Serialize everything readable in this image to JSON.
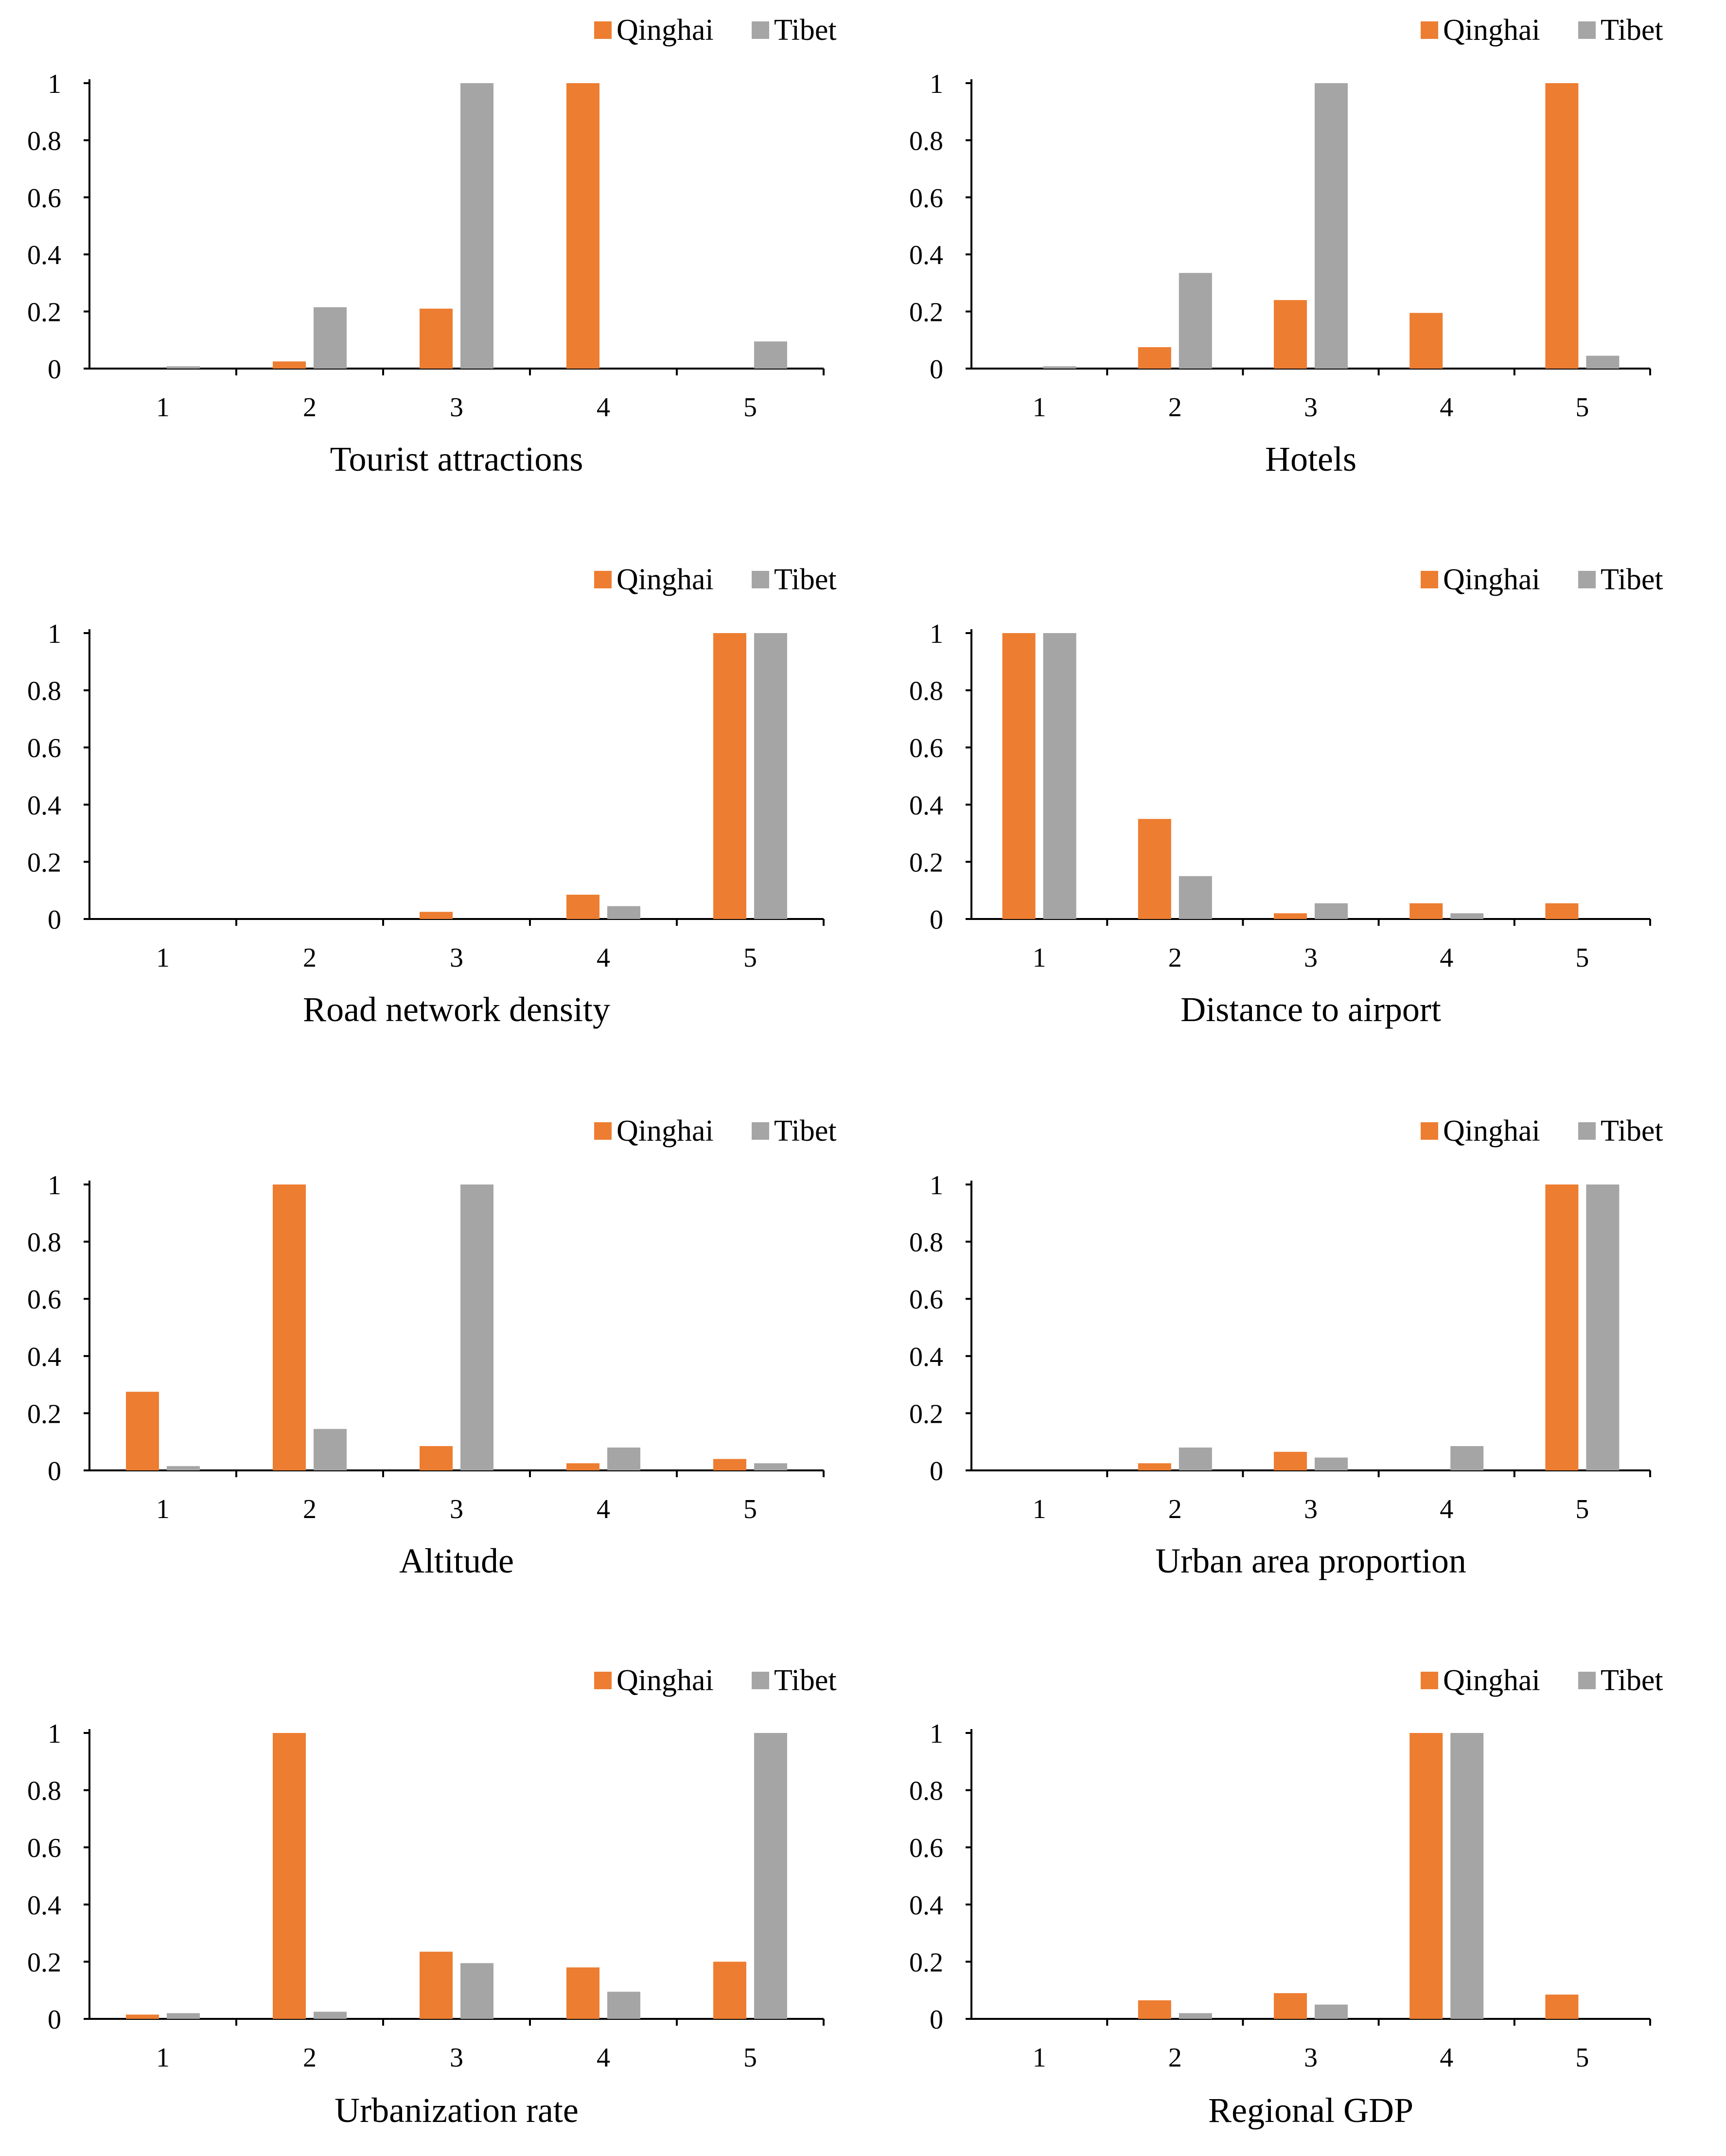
{
  "colors": {
    "Qinghai": "#ED7D31",
    "Tibet": "#A5A5A5",
    "axis": "#000000"
  },
  "legend_labels": [
    "Qinghai",
    "Tibet"
  ],
  "chart_data": [
    {
      "type": "bar",
      "title": "Tourist attractions",
      "categories": [
        "1",
        "2",
        "3",
        "4",
        "5"
      ],
      "y_ticks": [
        "0",
        "0.2",
        "0.4",
        "0.6",
        "0.8",
        "1"
      ],
      "ylim": [
        0,
        1
      ],
      "legend": "top-right",
      "series": [
        {
          "name": "Qinghai",
          "values": [
            0,
            0.025,
            0.21,
            1,
            0
          ]
        },
        {
          "name": "Tibet",
          "values": [
            0.008,
            0.215,
            1,
            0,
            0.095
          ]
        }
      ]
    },
    {
      "type": "bar",
      "title": "Hotels",
      "categories": [
        "1",
        "2",
        "3",
        "4",
        "5"
      ],
      "y_ticks": [
        "0",
        "0.2",
        "0.4",
        "0.6",
        "0.8",
        "1"
      ],
      "ylim": [
        0,
        1
      ],
      "legend": "top-right",
      "series": [
        {
          "name": "Qinghai",
          "values": [
            0,
            0.075,
            0.24,
            0.195,
            1
          ]
        },
        {
          "name": "Tibet",
          "values": [
            0.008,
            0.335,
            1,
            0,
            0.045
          ]
        }
      ]
    },
    {
      "type": "bar",
      "title": "Road network density",
      "categories": [
        "1",
        "2",
        "3",
        "4",
        "5"
      ],
      "y_ticks": [
        "0",
        "0.2",
        "0.4",
        "0.6",
        "0.8",
        "1"
      ],
      "ylim": [
        0,
        1
      ],
      "legend": "top-right",
      "series": [
        {
          "name": "Qinghai",
          "values": [
            0,
            0,
            0.025,
            0.085,
            1
          ]
        },
        {
          "name": "Tibet",
          "values": [
            0,
            0,
            0,
            0.045,
            1
          ]
        }
      ]
    },
    {
      "type": "bar",
      "title": "Distance to airport",
      "categories": [
        "1",
        "2",
        "3",
        "4",
        "5"
      ],
      "y_ticks": [
        "0",
        "0.2",
        "0.4",
        "0.6",
        "0.8",
        "1"
      ],
      "ylim": [
        0,
        1
      ],
      "legend": "top-right",
      "series": [
        {
          "name": "Qinghai",
          "values": [
            1,
            0.35,
            0.02,
            0.055,
            0.055
          ]
        },
        {
          "name": "Tibet",
          "values": [
            1,
            0.15,
            0.055,
            0.02,
            0
          ]
        }
      ]
    },
    {
      "type": "bar",
      "title": "Altitude",
      "categories": [
        "1",
        "2",
        "3",
        "4",
        "5"
      ],
      "y_ticks": [
        "0",
        "0.2",
        "0.4",
        "0.6",
        "0.8",
        "1"
      ],
      "ylim": [
        0,
        1
      ],
      "legend": "top-right",
      "series": [
        {
          "name": "Qinghai",
          "values": [
            0.275,
            1,
            0.085,
            0.025,
            0.04
          ]
        },
        {
          "name": "Tibet",
          "values": [
            0.015,
            0.145,
            1,
            0.08,
            0.025
          ]
        }
      ]
    },
    {
      "type": "bar",
      "title": "Urban area proportion",
      "categories": [
        "1",
        "2",
        "3",
        "4",
        "5"
      ],
      "y_ticks": [
        "0",
        "0.2",
        "0.4",
        "0.6",
        "0.8",
        "1"
      ],
      "ylim": [
        0,
        1
      ],
      "legend": "top-right",
      "series": [
        {
          "name": "Qinghai",
          "values": [
            0,
            0.025,
            0.065,
            0,
            1
          ]
        },
        {
          "name": "Tibet",
          "values": [
            0,
            0.08,
            0.045,
            0.085,
            1
          ]
        }
      ]
    },
    {
      "type": "bar",
      "title": "Urbanization rate",
      "categories": [
        "1",
        "2",
        "3",
        "4",
        "5"
      ],
      "y_ticks": [
        "0",
        "0.2",
        "0.4",
        "0.6",
        "0.8",
        "1"
      ],
      "ylim": [
        0,
        1
      ],
      "legend": "top-right",
      "series": [
        {
          "name": "Qinghai",
          "values": [
            0.015,
            1,
            0.235,
            0.18,
            0.2
          ]
        },
        {
          "name": "Tibet",
          "values": [
            0.02,
            0.025,
            0.195,
            0.095,
            1
          ]
        }
      ]
    },
    {
      "type": "bar",
      "title": "Regional GDP",
      "categories": [
        "1",
        "2",
        "3",
        "4",
        "5"
      ],
      "y_ticks": [
        "0",
        "0.2",
        "0.4",
        "0.6",
        "0.8",
        "1"
      ],
      "ylim": [
        0,
        1
      ],
      "legend": "top-right",
      "series": [
        {
          "name": "Qinghai",
          "values": [
            0,
            0.065,
            0.09,
            1,
            0.085
          ]
        },
        {
          "name": "Tibet",
          "values": [
            0,
            0.02,
            0.05,
            1,
            0
          ]
        }
      ]
    }
  ]
}
